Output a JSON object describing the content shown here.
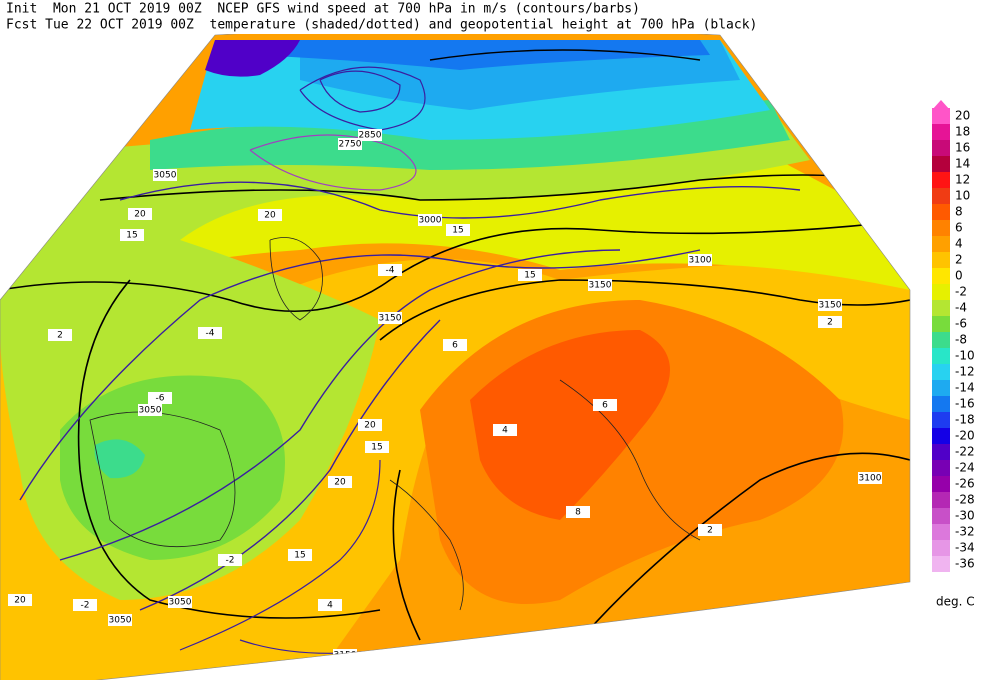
{
  "header": {
    "line1": "Init  Mon 21 OCT 2019 00Z  NCEP GFS wind speed at 700 hPa in m/s (contours/barbs)",
    "line2": "Fcst Tue 22 OCT 2019 00Z  temperature (shaded/dotted) and geopotential height at 700 hPa (black)"
  },
  "colorbar": {
    "unit": "deg. C",
    "levels": [
      20,
      18,
      16,
      14,
      12,
      10,
      8,
      6,
      4,
      2,
      0,
      -2,
      -4,
      -6,
      -8,
      -10,
      -12,
      -14,
      -16,
      -18,
      -20,
      -22,
      -24,
      -26,
      -28,
      -30,
      -32,
      -34,
      -36
    ],
    "colors": [
      "#ff55c8",
      "#e61496",
      "#c80a78",
      "#b4003c",
      "#ff1414",
      "#f03c14",
      "#ff5a00",
      "#ff8200",
      "#ffa000",
      "#ffc300",
      "#ffe600",
      "#e6f000",
      "#b4e632",
      "#78dc3c",
      "#3cdc8c",
      "#28e6c8",
      "#28d2f0",
      "#1eaaf0",
      "#1478f0",
      "#1e3cf0",
      "#1400e6",
      "#5000c8",
      "#7800b4",
      "#9600aa",
      "#b428b4",
      "#c850c8",
      "#dc78dc",
      "#e696e6",
      "#f0b4f0"
    ]
  },
  "map": {
    "contour_labels": [
      "3150",
      "3050",
      "3000",
      "3050",
      "2850",
      "2750",
      "3150",
      "3100",
      "3150",
      "3050",
      "3100",
      "3050",
      "3150",
      "20",
      "15",
      "20",
      "15",
      "20",
      "15",
      "20",
      "15",
      "20",
      "15",
      "-4",
      "-6",
      "-2",
      "2",
      "4",
      "6",
      "8",
      "6",
      "2",
      "-2",
      "4",
      "2",
      "-4"
    ]
  }
}
